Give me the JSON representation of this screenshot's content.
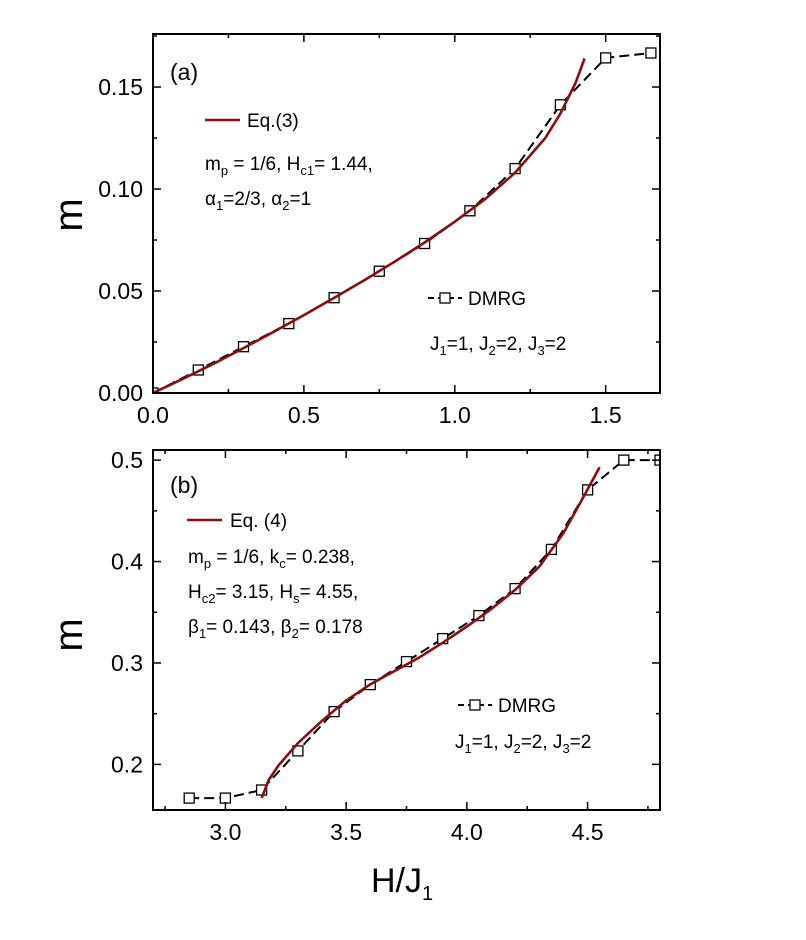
{
  "xlabel": "H/J",
  "xlabel_sub": "1",
  "chart_data": [
    {
      "panel": "(a)",
      "type": "line",
      "ylabel": "m",
      "xlim": [
        0,
        1.68
      ],
      "ylim": [
        0,
        0.176
      ],
      "xticks": [
        "0.0",
        "0.5",
        "1.0",
        "1.5"
      ],
      "xtick_values": [
        0,
        0.5,
        1.0,
        1.5
      ],
      "yticks": [
        "0.00",
        "0.05",
        "0.10",
        "0.15"
      ],
      "ytick_values": [
        0,
        0.05,
        0.1,
        0.15
      ],
      "series": [
        {
          "name": "DMRG",
          "style": "dashed-square",
          "x": [
            0.0,
            0.15,
            0.3,
            0.45,
            0.6,
            0.75,
            0.9,
            1.05,
            1.2,
            1.35,
            1.5,
            1.65
          ],
          "y": [
            0.0,
            0.0113,
            0.0227,
            0.034,
            0.0467,
            0.0597,
            0.0733,
            0.0893,
            0.11,
            0.1413,
            0.1643,
            0.1667
          ]
        },
        {
          "name": "Eq.(3)",
          "style": "solid",
          "color": "#8b0e0e",
          "x": [
            0.0,
            0.1,
            0.2,
            0.3,
            0.4,
            0.5,
            0.6,
            0.7,
            0.8,
            0.9,
            1.0,
            1.1,
            1.2,
            1.3,
            1.35,
            1.4,
            1.43
          ],
          "y": [
            0.0,
            0.007,
            0.0143,
            0.022,
            0.03,
            0.0382,
            0.0466,
            0.0553,
            0.0643,
            0.0738,
            0.084,
            0.095,
            0.108,
            0.125,
            0.137,
            0.152,
            0.164
          ]
        }
      ],
      "legend": [
        {
          "label": "Eq.(3)"
        },
        {
          "label": "DMRG"
        }
      ],
      "annotations": {
        "params_line1": {
          "a": "m",
          "a_sub": "p",
          "b": " = 1/6, H",
          "b_sub": "c1",
          "c": "= 1.44,"
        },
        "params_line2": {
          "a": "α",
          "a_sub": "1",
          "b": "=2/3, α",
          "b_sub": "2",
          "c": "=1"
        },
        "couplings": {
          "a": "J",
          "a_sub": "1",
          "b": "=1, J",
          "b_sub": "2",
          "c": "=2, J",
          "c_sub": "3",
          "d": "=2"
        }
      }
    },
    {
      "panel": "(b)",
      "type": "line",
      "ylabel": "m",
      "xlim": [
        2.7,
        4.8
      ],
      "ylim": [
        0.155,
        0.51
      ],
      "xticks": [
        "3.0",
        "3.5",
        "4.0",
        "4.5"
      ],
      "xtick_values": [
        3.0,
        3.5,
        4.0,
        4.5
      ],
      "yticks": [
        "0.2",
        "0.3",
        "0.4",
        "0.5"
      ],
      "ytick_values": [
        0.2,
        0.3,
        0.4,
        0.5
      ],
      "series": [
        {
          "name": "DMRG",
          "style": "dashed-square",
          "x": [
            2.85,
            3.0,
            3.15,
            3.3,
            3.45,
            3.6,
            3.75,
            3.9,
            4.05,
            4.2,
            4.35,
            4.5,
            4.65,
            4.8
          ],
          "y": [
            0.1667,
            0.1667,
            0.1747,
            0.2133,
            0.252,
            0.2787,
            0.3013,
            0.324,
            0.3467,
            0.3733,
            0.412,
            0.4707,
            0.5,
            0.5
          ]
        },
        {
          "name": "Eq. (4)",
          "style": "solid",
          "color": "#8b0e0e",
          "x": [
            3.15,
            3.18,
            3.22,
            3.3,
            3.4,
            3.5,
            3.6,
            3.7,
            3.8,
            3.9,
            4.0,
            4.1,
            4.2,
            4.3,
            4.4,
            4.47,
            4.55
          ],
          "y": [
            0.1667,
            0.185,
            0.199,
            0.221,
            0.243,
            0.263,
            0.279,
            0.292,
            0.305,
            0.32,
            0.336,
            0.353,
            0.372,
            0.395,
            0.428,
            0.458,
            0.493
          ]
        }
      ],
      "legend": [
        {
          "label": "Eq. (4)"
        },
        {
          "label": "DMRG"
        }
      ],
      "annotations": {
        "params_line1": {
          "a": "m",
          "a_sub": "p",
          "b": " = 1/6, k",
          "b_sub": "c",
          "c": "= 0.238,"
        },
        "params_line2": {
          "a": "H",
          "a_sub": "c2",
          "b": "= 3.15, H",
          "b_sub": "s",
          "c": "= 4.55,"
        },
        "params_line3": {
          "a": "β",
          "a_sub": "1",
          "b": "= 0.143, β",
          "b_sub": "2",
          "c": "= 0.178"
        },
        "couplings": {
          "a": "J",
          "a_sub": "1",
          "b": "=1, J",
          "b_sub": "2",
          "c": "=2, J",
          "c_sub": "3",
          "d": "=2"
        }
      }
    }
  ]
}
